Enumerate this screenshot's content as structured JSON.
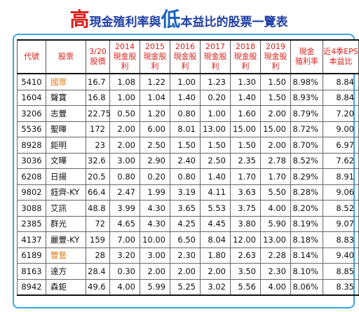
{
  "title": {
    "high": "高",
    "part1": "現金殖利率與",
    "low": "低",
    "part2": "本益比的股票一覽表"
  },
  "headers": {
    "code": "代號",
    "name": "股票",
    "price_l1": "3/20",
    "price_l2": "股價",
    "y2014_l1": "2014",
    "y2015_l1": "2015",
    "y2016_l1": "2016",
    "y2017_l1": "2017",
    "y2018_l1": "2018",
    "y2019_l1": "2019",
    "div_label": "現金股利",
    "rate_l1": "現金",
    "rate_l2": "殖利率",
    "pe_l1": "近4季EPS",
    "pe_l2": "本益比"
  },
  "colors": {
    "title_high": "#d8201c",
    "title_low": "#1a62c8",
    "title_text": "#1f3fa6",
    "header_text": "#d8201c",
    "highlight_name": "#e07b1a",
    "frame_border": "#3aa6e8"
  },
  "rows": [
    {
      "code": "5410",
      "name": "國眾",
      "price": "16.7",
      "d2014": "1.08",
      "d2015": "1.22",
      "d2016": "1.00",
      "d2017": "1.23",
      "d2018": "1.30",
      "d2019": "1.50",
      "yield": "8.98%",
      "pe": "8.84",
      "highlight": true
    },
    {
      "code": "1604",
      "name": "聲寶",
      "price": "16.8",
      "d2014": "1.00",
      "d2015": "1.04",
      "d2016": "1.40",
      "d2017": "0.20",
      "d2018": "1.40",
      "d2019": "1.50",
      "yield": "8.93%",
      "pe": "8.84",
      "highlight": false
    },
    {
      "code": "3206",
      "name": "志豐",
      "price": "22.75",
      "d2014": "0.50",
      "d2015": "1.20",
      "d2016": "0.80",
      "d2017": "1.00",
      "d2018": "1.60",
      "d2019": "2.00",
      "yield": "8.79%",
      "pe": "7.20",
      "highlight": false
    },
    {
      "code": "5536",
      "name": "聖暉",
      "price": "172",
      "d2014": "2.00",
      "d2015": "6.00",
      "d2016": "8.01",
      "d2017": "13.00",
      "d2018": "15.00",
      "d2019": "15.00",
      "yield": "8.72%",
      "pe": "9.00",
      "highlight": false
    },
    {
      "code": "8928",
      "name": "鉅明",
      "price": "23",
      "d2014": "2.00",
      "d2015": "2.50",
      "d2016": "1.50",
      "d2017": "1.50",
      "d2018": "1.50",
      "d2019": "2.00",
      "yield": "8.70%",
      "pe": "6.97",
      "highlight": false
    },
    {
      "code": "3036",
      "name": "文曄",
      "price": "32.6",
      "d2014": "3.00",
      "d2015": "2.90",
      "d2016": "2.40",
      "d2017": "2.50",
      "d2018": "2.35",
      "d2019": "2.78",
      "yield": "8.52%",
      "pe": "7.62",
      "highlight": false
    },
    {
      "code": "6208",
      "name": "日揚",
      "price": "20.5",
      "d2014": "0.80",
      "d2015": "0.20",
      "d2016": "0.80",
      "d2017": "1.40",
      "d2018": "1.70",
      "d2019": "1.70",
      "yield": "8.29%",
      "pe": "8.91",
      "highlight": false
    },
    {
      "code": "9802",
      "name": "鈺齊-KY",
      "price": "66.4",
      "d2014": "2.47",
      "d2015": "1.99",
      "d2016": "3.19",
      "d2017": "4.11",
      "d2018": "3.63",
      "d2019": "5.50",
      "yield": "8.28%",
      "pe": "9.06",
      "highlight": false
    },
    {
      "code": "3088",
      "name": "艾訊",
      "price": "48.8",
      "d2014": "3.99",
      "d2015": "4.30",
      "d2016": "3.65",
      "d2017": "5.53",
      "d2018": "3.75",
      "d2019": "4.00",
      "yield": "8.20%",
      "pe": "8.52",
      "highlight": false
    },
    {
      "code": "2385",
      "name": "群光",
      "price": "72",
      "d2014": "4.65",
      "d2015": "4.30",
      "d2016": "4.25",
      "d2017": "4.45",
      "d2018": "3.80",
      "d2019": "5.90",
      "yield": "8.19%",
      "pe": "9.07",
      "highlight": false
    },
    {
      "code": "4137",
      "name": "麗豐-KY",
      "price": "159",
      "d2014": "7.00",
      "d2015": "10.00",
      "d2016": "6.50",
      "d2017": "8.04",
      "d2018": "12.00",
      "d2019": "13.00",
      "yield": "8.18%",
      "pe": "8.83",
      "highlight": false
    },
    {
      "code": "6189",
      "name": "豐藝",
      "price": "28",
      "d2014": "3.20",
      "d2015": "3.00",
      "d2016": "2.30",
      "d2017": "1.80",
      "d2018": "2.63",
      "d2019": "2.28",
      "yield": "8.14%",
      "pe": "9.40",
      "highlight": true
    },
    {
      "code": "8163",
      "name": "達方",
      "price": "28.4",
      "d2014": "0.30",
      "d2015": "2.00",
      "d2016": "2.00",
      "d2017": "2.00",
      "d2018": "3.50",
      "d2019": "2.30",
      "yield": "8.10%",
      "pe": "8.85",
      "highlight": false
    },
    {
      "code": "8942",
      "name": "森鉅",
      "price": "49.6",
      "d2014": "4.00",
      "d2015": "5.99",
      "d2016": "5.25",
      "d2017": "3.02",
      "d2018": "5.56",
      "d2019": "4.00",
      "yield": "8.06%",
      "pe": "8.35",
      "highlight": false
    }
  ]
}
